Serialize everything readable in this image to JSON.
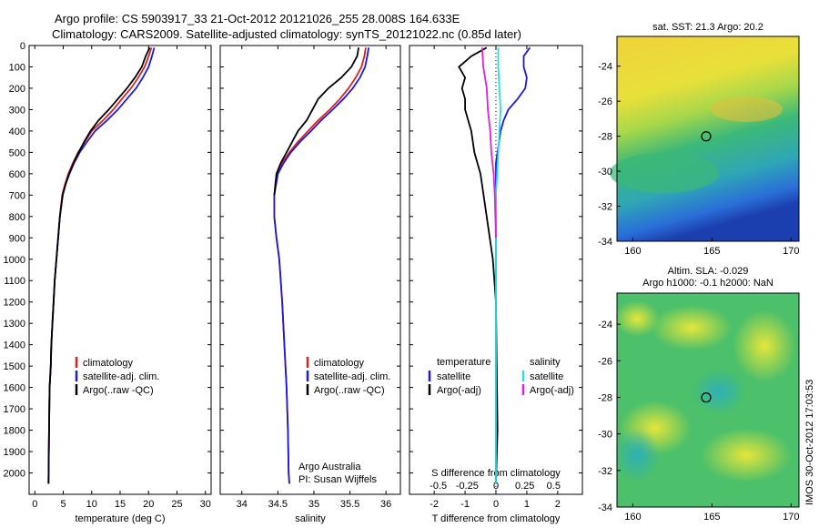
{
  "header": {
    "line1": "Argo profile: CS 5903917_33 21-Oct-2012 20121026_255 28.008S 164.633E",
    "line2": "Climatology: CARS2009. Satellite-adjusted climatology: synTS_20121022.nc (0.85d later)"
  },
  "footer_text": "IMOS 30-Oct-2012 17:03:53",
  "colors": {
    "argo": "#000000",
    "climatology": "#e0201a",
    "satellite": "#1a1ae0",
    "sal_sat": "#22e0e0",
    "sal_argo": "#e020e0"
  },
  "chart_data": [
    {
      "id": "temperature",
      "type": "line",
      "xlabel": "temperature (deg C)",
      "ylabel": "",
      "xlim": [
        -1,
        31
      ],
      "ylim": [
        2100,
        0
      ],
      "xticks": [
        0,
        5,
        10,
        15,
        20,
        25,
        30
      ],
      "xtick_labels": [
        "0",
        "5",
        "10",
        "15",
        "20",
        "25",
        "30"
      ],
      "yticks": [
        0,
        100,
        200,
        300,
        400,
        500,
        600,
        700,
        800,
        900,
        1000,
        1100,
        1200,
        1300,
        1400,
        1500,
        1600,
        1700,
        1800,
        1900,
        2000
      ],
      "ytick_labels": [
        "0",
        "100",
        "200",
        "300",
        "400",
        "500",
        "600",
        "700",
        "800",
        "900",
        "1000",
        "1100",
        "1200",
        "1300",
        "1400",
        "1500",
        "1600",
        "1700",
        "1800",
        "1900",
        "2000"
      ],
      "series": [
        {
          "name": "climatology",
          "color": "#e0201a",
          "x": [
            20.5,
            20.0,
            19.3,
            18.2,
            16.9,
            15.3,
            13.8,
            12.0,
            10.0,
            8.8,
            7.6,
            6.7,
            5.9,
            5.3,
            4.8,
            4.4,
            4.1,
            3.8,
            3.5,
            3.3,
            3.1,
            2.9,
            2.8,
            2.6,
            2.5,
            2.4
          ],
          "y": [
            10,
            50,
            100,
            150,
            200,
            250,
            300,
            350,
            400,
            450,
            500,
            550,
            600,
            650,
            700,
            800,
            900,
            1000,
            1100,
            1200,
            1300,
            1400,
            1500,
            1600,
            1800,
            2050
          ]
        },
        {
          "name": "satellite-adj. clim.",
          "color": "#1a1ae0",
          "x": [
            21.0,
            20.6,
            20.0,
            19.0,
            17.8,
            16.2,
            14.6,
            12.7,
            10.6,
            9.2,
            7.9,
            6.9,
            6.1,
            5.4,
            4.9,
            4.4,
            4.1,
            3.8,
            3.5,
            3.3,
            3.1,
            2.9,
            2.8,
            2.6,
            2.5,
            2.4
          ],
          "y": [
            10,
            50,
            100,
            150,
            200,
            250,
            300,
            350,
            400,
            450,
            500,
            550,
            600,
            650,
            700,
            800,
            900,
            1000,
            1100,
            1200,
            1300,
            1400,
            1500,
            1600,
            1800,
            2050
          ]
        },
        {
          "name": "Argo(..raw -QC)",
          "color": "#000000",
          "x": [
            20.2,
            19.5,
            18.8,
            17.6,
            16.2,
            14.6,
            13.0,
            11.2,
            9.8,
            8.7,
            7.7,
            6.8,
            6.0,
            5.4,
            4.9,
            4.4,
            4.1,
            3.8,
            3.5,
            3.3,
            3.1,
            2.9,
            2.8,
            2.6,
            2.5,
            2.4
          ],
          "y": [
            10,
            50,
            100,
            150,
            200,
            250,
            300,
            350,
            400,
            450,
            500,
            550,
            600,
            650,
            700,
            800,
            900,
            1000,
            1100,
            1200,
            1300,
            1400,
            1500,
            1600,
            1800,
            2050
          ]
        }
      ],
      "legend": [
        "climatology",
        "satellite-adj. clim.",
        "Argo(..raw -QC)"
      ],
      "legend_position": "bottom-center"
    },
    {
      "id": "salinity",
      "type": "line",
      "xlabel": "salinity",
      "ylabel": "",
      "xlim": [
        33.7,
        36.2
      ],
      "ylim": [
        2100,
        0
      ],
      "xticks": [
        34,
        34.5,
        35,
        35.5,
        36
      ],
      "xtick_labels": [
        "34",
        "34.5",
        "35",
        "35.5",
        "36"
      ],
      "series": [
        {
          "name": "climatology",
          "color": "#e0201a",
          "x": [
            35.72,
            35.7,
            35.66,
            35.58,
            35.48,
            35.36,
            35.22,
            35.06,
            34.92,
            34.78,
            34.66,
            34.56,
            34.49,
            34.45,
            34.45,
            34.48,
            34.52,
            34.56,
            34.59,
            34.62,
            34.64,
            34.65,
            34.66
          ],
          "y": [
            10,
            50,
            100,
            150,
            200,
            250,
            300,
            350,
            400,
            450,
            500,
            550,
            600,
            700,
            800,
            900,
            1000,
            1200,
            1400,
            1600,
            1800,
            2000,
            2050
          ]
        },
        {
          "name": "satellite-adj. clim.",
          "color": "#1a1ae0",
          "x": [
            35.76,
            35.74,
            35.71,
            35.64,
            35.54,
            35.41,
            35.26,
            35.1,
            34.96,
            34.81,
            34.68,
            34.58,
            34.5,
            34.45,
            34.45,
            34.48,
            34.52,
            34.56,
            34.59,
            34.62,
            34.64,
            34.65,
            34.66
          ],
          "y": [
            10,
            50,
            100,
            150,
            200,
            250,
            300,
            350,
            400,
            450,
            500,
            550,
            600,
            700,
            800,
            900,
            1000,
            1200,
            1400,
            1600,
            1800,
            2000,
            2050
          ]
        },
        {
          "name": "Argo(..raw -QC)",
          "color": "#000000",
          "x": [
            35.62,
            35.6,
            35.52,
            35.38,
            35.2,
            35.06,
            34.98,
            34.9,
            34.78,
            34.7,
            34.62,
            34.54,
            34.48,
            34.45
          ],
          "y": [
            10,
            50,
            100,
            150,
            200,
            250,
            300,
            350,
            400,
            450,
            500,
            550,
            600,
            700
          ]
        }
      ],
      "legend": [
        "climatology",
        "satellite-adj. clim.",
        "Argo(..raw -QC)"
      ],
      "annotation_lines": [
        "Argo Australia",
        "PI: Susan Wijffels"
      ]
    },
    {
      "id": "difference",
      "type": "line",
      "xlabel": "T difference from climatology",
      "xlabel_top": "S difference from climatology",
      "ylim": [
        2100,
        0
      ],
      "t_xlim": [
        -2.8,
        2.8
      ],
      "t_xticks": [
        -2,
        -1,
        0,
        1,
        2
      ],
      "t_xtick_labels": [
        "-2",
        "-1",
        "0",
        "1",
        "2"
      ],
      "s_xticks": [
        -0.5,
        -0.25,
        0,
        0.25,
        0.5
      ],
      "s_xtick_labels": [
        "-0.5",
        "-0.25",
        "0",
        "0.25",
        "0.5"
      ],
      "series": [
        {
          "name": "temperature satellite",
          "color": "#1a1ae0",
          "x": [
            1.1,
            0.9,
            0.9,
            1.0,
            0.95,
            0.7,
            0.4,
            0.25,
            0.15,
            0.1,
            0.05,
            0.0,
            0.0,
            0.0
          ],
          "y": [
            10,
            50,
            100,
            150,
            200,
            250,
            300,
            350,
            400,
            450,
            500,
            550,
            700,
            2050
          ]
        },
        {
          "name": "temperature Argo(-adj)",
          "color": "#000000",
          "x": [
            -0.3,
            -0.8,
            -1.2,
            -1.0,
            -1.1,
            -1.0,
            -1.0,
            -0.9,
            -0.8,
            -0.7,
            -0.5,
            -0.4,
            -0.3,
            -0.2,
            -0.1,
            0.0,
            0.05,
            0.0
          ],
          "y": [
            10,
            50,
            100,
            150,
            200,
            250,
            300,
            350,
            400,
            500,
            600,
            700,
            800,
            900,
            1000,
            1200,
            1800,
            2050
          ]
        },
        {
          "name": "salinity satellite",
          "color": "#22e0e0",
          "x": [
            0.02,
            0.02,
            0.03,
            0.04,
            0.03,
            0.02,
            0.01,
            0.0,
            0.0
          ],
          "y": [
            10,
            100,
            200,
            300,
            400,
            500,
            600,
            700,
            2050
          ]
        },
        {
          "name": "salinity Argo(-adj)",
          "color": "#e020e0",
          "x": [
            -0.12,
            -0.11,
            -0.08,
            -0.07,
            -0.05,
            -0.04,
            -0.02,
            -0.01,
            0.0
          ],
          "y": [
            10,
            100,
            200,
            300,
            400,
            500,
            600,
            700,
            900
          ]
        }
      ],
      "legend_temperature": {
        "title": "temperature",
        "items": [
          "satellite",
          "Argo(-adj)"
        ]
      },
      "legend_salinity": {
        "title": "salinity",
        "items": [
          "satellite",
          "Argo(-adj)"
        ]
      }
    },
    {
      "id": "sst-map",
      "type": "heatmap",
      "title": "sat. SST: 21.3 Argo: 20.2",
      "xlim": [
        159,
        170.5
      ],
      "ylim": [
        -34,
        -22.3
      ],
      "xticks": [
        160,
        165,
        170
      ],
      "xtick_labels": [
        "160",
        "165",
        "170"
      ],
      "yticks": [
        -24,
        -26,
        -28,
        -30,
        -32,
        -34
      ],
      "ytick_labels": [
        "-24",
        "-26",
        "-28",
        "-30",
        "-32",
        "-34"
      ],
      "marker": {
        "lon": 164.633,
        "lat": -28.008
      }
    },
    {
      "id": "sla-map",
      "type": "heatmap",
      "title_lines": [
        "Altim. SLA: -0.029",
        "Argo h1000: -0.1 h2000: NaN"
      ],
      "xlim": [
        159,
        170.5
      ],
      "ylim": [
        -34,
        -22.3
      ],
      "xticks": [
        160,
        165,
        170
      ],
      "xtick_labels": [
        "160",
        "165",
        "170"
      ],
      "yticks": [
        -24,
        -26,
        -28,
        -30,
        -32,
        -34
      ],
      "ytick_labels": [
        "-24",
        "-26",
        "-28",
        "-30",
        "-32",
        "-34"
      ],
      "marker": {
        "lon": 164.633,
        "lat": -28.008
      }
    }
  ]
}
